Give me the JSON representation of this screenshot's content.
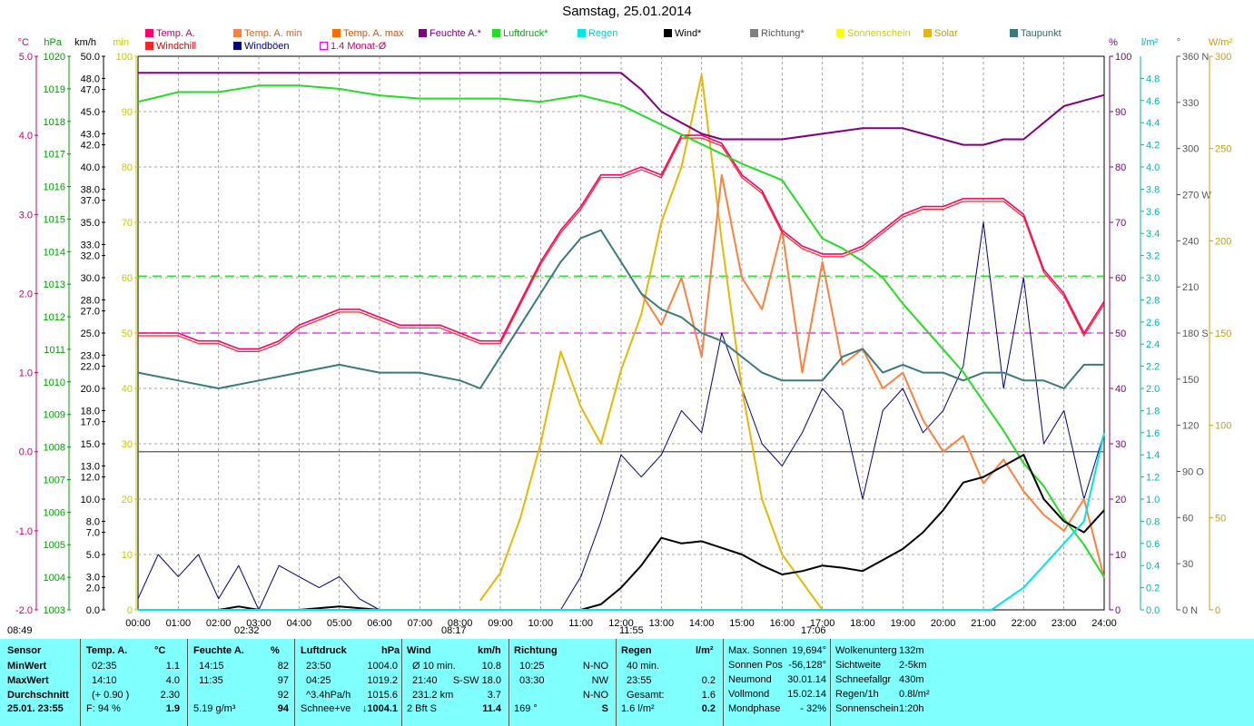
{
  "title": "Samstag, 25.01.2014",
  "colors": {
    "temp": "#ff0066",
    "temp_min": "#ff7f40",
    "temp_max": "#ff6a00",
    "windchill": "#ff2222",
    "humidity": "#800080",
    "pressure": "#22dd22",
    "rain": "#00e5e5",
    "wind": "#000000",
    "gust": "#000080",
    "direction": "#808080",
    "sunshine": "#ffff00",
    "solar": "#e6b800",
    "dewpoint": "#3a7a78",
    "avg": "#ff00ff",
    "pressure_ref": "#00cc00"
  },
  "legend": [
    {
      "label": "Temp. A.",
      "color": "#ff0066"
    },
    {
      "label": "Temp. A. min",
      "color": "#ff7f40"
    },
    {
      "label": "Temp. A. max",
      "color": "#ff6a00"
    },
    {
      "label": "Feuchte A.*",
      "color": "#800080"
    },
    {
      "label": "Luftdruck*",
      "color": "#22dd22"
    },
    {
      "label": "Regen",
      "color": "#00e5e5"
    },
    {
      "label": "Wind*",
      "color": "#000000"
    },
    {
      "label": "Richtung*",
      "color": "#808080"
    },
    {
      "label": "Sonnenschein",
      "color": "#ffff00"
    },
    {
      "label": "Solar",
      "color": "#e6b800"
    },
    {
      "label": "Taupunkt",
      "color": "#3a7a78"
    },
    {
      "label": "Windchill",
      "color": "#ff2222"
    },
    {
      "label": "Windböen",
      "color": "#000080"
    },
    {
      "label": "1.4 Monat-Ø",
      "color": "#ff00ff"
    }
  ],
  "chart_data": {
    "type": "line",
    "title": "Samstag, 25.01.2014",
    "x_tick_labels": [
      "00:00",
      "01:00",
      "02:00",
      "03:00",
      "04:00",
      "05:00",
      "06:00",
      "07:00",
      "08:00",
      "09:00",
      "10:00",
      "11:00",
      "12:00",
      "13:00",
      "14:00",
      "15:00",
      "16:00",
      "17:00",
      "18:00",
      "19:00",
      "20:00",
      "21:00",
      "22:00",
      "23:00",
      "24:00"
    ],
    "axes": {
      "temp": {
        "unit": "°C",
        "range": [
          -2.0,
          5.0
        ],
        "ticks": [
          "5.0",
          "4.0",
          "3.0",
          "2.0",
          "1.0",
          "0.0",
          "-1.0",
          "-2.0"
        ]
      },
      "pressure": {
        "unit": "hPa",
        "range": [
          1003,
          1020
        ],
        "ticks": [
          "1020",
          "1019",
          "1018",
          "1017",
          "1016",
          "1015",
          "1014",
          "1013",
          "1012",
          "1011",
          "1010",
          "1009",
          "1008",
          "1007",
          "1006",
          "1005",
          "1004",
          "1003"
        ]
      },
      "wind": {
        "unit": "km/h",
        "range": [
          0,
          50
        ],
        "ticks": [
          "50.0",
          "48.0",
          "47.0",
          "45.0",
          "43.0",
          "42.0",
          "40.0",
          "38.0",
          "37.0",
          "35.0",
          "33.0",
          "32.0",
          "30.0",
          "28.0",
          "27.0",
          "25.0",
          "23.0",
          "22.0",
          "20.0",
          "18.0",
          "17.0",
          "15.0",
          "13.0",
          "12.0",
          "10.0",
          "8.0",
          "7.0",
          "5.0",
          "3.0",
          "2.0",
          "0.0"
        ]
      },
      "percent": {
        "unit": "min",
        "range": [
          0,
          100
        ],
        "ticks": [
          "100",
          "90",
          "80",
          "70",
          "60",
          "50",
          "40",
          "30",
          "20",
          "10",
          "0"
        ]
      },
      "humidity": {
        "unit": "%",
        "range": [
          0,
          100
        ],
        "ticks": [
          "100",
          "90",
          "80",
          "70",
          "60",
          "50",
          "40",
          "30",
          "20",
          "10",
          "0"
        ]
      },
      "rain": {
        "unit": "l/m²",
        "range": [
          0,
          5
        ],
        "ticks": [
          "4.8",
          "4.6",
          "4.4",
          "4.2",
          "4.0",
          "3.8",
          "3.6",
          "3.4",
          "3.2",
          "3.0",
          "2.8",
          "2.6",
          "2.4",
          "2.2",
          "2.0",
          "1.8",
          "1.6",
          "1.4",
          "1.2",
          "1.0",
          "0.8",
          "0.6",
          "0.4",
          "0.2",
          "0.0"
        ]
      },
      "direction": {
        "unit": "°",
        "range": [
          0,
          360
        ],
        "ticks": [
          "360 N",
          "330",
          "300",
          "270 W",
          "240",
          "210",
          "180 S",
          "150",
          "120",
          "90 O",
          "60",
          "30",
          "0 N"
        ]
      },
      "solar": {
        "unit": "W/m²",
        "range": [
          0,
          300
        ],
        "ticks": [
          "300",
          "250",
          "200",
          "150",
          "100",
          "50",
          "0"
        ]
      }
    },
    "series": [
      {
        "name": "Temp. A.",
        "axis": "temp",
        "x": [
          0,
          1,
          1.5,
          2,
          2.5,
          3,
          3.5,
          4,
          4.5,
          5,
          5.5,
          6,
          6.5,
          7,
          7.5,
          8,
          8.5,
          9,
          9.5,
          10,
          10.5,
          11,
          11.5,
          12,
          12.5,
          13,
          13.5,
          14,
          14.5,
          15,
          15.5,
          16,
          16.5,
          17,
          17.5,
          18,
          18.5,
          19,
          19.5,
          20,
          20.5,
          21,
          21.5,
          22,
          22.5,
          23,
          23.5,
          24
        ],
        "y": [
          1.5,
          1.5,
          1.4,
          1.4,
          1.3,
          1.3,
          1.4,
          1.6,
          1.7,
          1.8,
          1.8,
          1.7,
          1.6,
          1.6,
          1.6,
          1.5,
          1.4,
          1.4,
          1.9,
          2.4,
          2.8,
          3.1,
          3.5,
          3.5,
          3.6,
          3.5,
          4.0,
          4.0,
          3.9,
          3.5,
          3.3,
          2.8,
          2.6,
          2.5,
          2.5,
          2.6,
          2.8,
          3.0,
          3.1,
          3.1,
          3.2,
          3.2,
          3.2,
          3.0,
          2.3,
          2.0,
          1.5,
          1.9
        ]
      },
      {
        "name": "Taupunkt",
        "axis": "temp",
        "x": [
          0,
          1,
          2,
          3,
          4,
          5,
          6,
          7,
          8,
          8.5,
          9,
          9.5,
          10,
          10.5,
          11,
          11.5,
          12,
          12.5,
          13,
          13.5,
          14,
          14.5,
          15,
          15.5,
          16,
          16.5,
          17,
          17.5,
          18,
          18.5,
          19,
          19.5,
          20,
          20.5,
          21,
          21.5,
          22,
          22.5,
          23,
          23.5,
          24
        ],
        "y": [
          1.0,
          0.9,
          0.8,
          0.9,
          1.0,
          1.1,
          1.0,
          1.0,
          0.9,
          0.8,
          1.2,
          1.6,
          2.0,
          2.4,
          2.7,
          2.8,
          2.4,
          2.0,
          1.8,
          1.7,
          1.5,
          1.4,
          1.2,
          1.0,
          0.9,
          0.9,
          0.9,
          1.2,
          1.3,
          1.0,
          1.1,
          1.0,
          1.0,
          0.9,
          1.0,
          1.0,
          0.9,
          0.9,
          0.8,
          1.1,
          1.1
        ]
      },
      {
        "name": "Feuchte A.*",
        "axis": "humidity",
        "x": [
          0,
          12,
          12.5,
          13,
          13.5,
          14,
          14.5,
          15,
          16,
          17,
          18,
          19,
          19.5,
          20,
          20.5,
          21,
          21.5,
          22,
          22.5,
          23,
          23.5,
          24
        ],
        "y": [
          97,
          97,
          94,
          90,
          88,
          86,
          85,
          85,
          85,
          86,
          87,
          87,
          86,
          85,
          84,
          84,
          85,
          85,
          88,
          91,
          92,
          93
        ]
      },
      {
        "name": "Luftdruck*",
        "axis": "pressure",
        "x": [
          0,
          1,
          2,
          3,
          4,
          5,
          6,
          7,
          8,
          9,
          10,
          11,
          12,
          13,
          14,
          15,
          16,
          16.5,
          17,
          17.5,
          18,
          18.5,
          19,
          19.5,
          20,
          20.5,
          21,
          21.5,
          22,
          22.5,
          23,
          23.5,
          24
        ],
        "y": [
          1018.6,
          1018.9,
          1018.9,
          1019.1,
          1019.1,
          1019.0,
          1018.8,
          1018.7,
          1018.7,
          1018.7,
          1018.6,
          1018.8,
          1018.5,
          1017.9,
          1017.3,
          1016.7,
          1016.2,
          1015.3,
          1014.4,
          1014.1,
          1013.7,
          1013.2,
          1012.4,
          1011.7,
          1011.0,
          1010.3,
          1009.4,
          1008.5,
          1007.5,
          1006.8,
          1005.8,
          1005.0,
          1004.0
        ]
      },
      {
        "name": "Wind*",
        "axis": "wind",
        "x": [
          0,
          2,
          2.5,
          3,
          4,
          5,
          6,
          7,
          8,
          9,
          10,
          10.5,
          11,
          11.5,
          12,
          12.5,
          13,
          13.5,
          14,
          14.5,
          15,
          15.5,
          16,
          16.5,
          17,
          17.5,
          18,
          18.5,
          19,
          19.5,
          20,
          20.5,
          21,
          21.5,
          22,
          22.5,
          23,
          23.5,
          24
        ],
        "y": [
          0,
          0,
          0.3,
          0,
          0,
          0.3,
          0,
          0,
          0,
          0,
          0,
          0,
          0,
          0.5,
          2.0,
          4.0,
          6.5,
          6.0,
          6.2,
          5.6,
          5.0,
          4.0,
          3.2,
          3.5,
          4.0,
          3.8,
          3.5,
          4.5,
          5.5,
          7.0,
          9.0,
          11.5,
          12.0,
          13.0,
          14.0,
          10.0,
          8.0,
          7.0,
          9.0
        ]
      },
      {
        "name": "Windböen",
        "axis": "wind",
        "x": [
          0,
          0.5,
          1,
          1.5,
          2,
          2.5,
          3,
          3.5,
          4,
          4.5,
          5,
          5.5,
          6,
          6.5,
          7,
          7.5,
          8,
          8.5,
          9,
          9.5,
          10,
          10.5,
          11,
          11.5,
          12,
          12.5,
          13,
          13.5,
          14,
          14.5,
          15,
          15.5,
          16,
          16.5,
          17,
          17.5,
          18,
          18.5,
          19,
          19.5,
          20,
          20.5,
          21,
          21.5,
          22,
          22.5,
          23,
          23.5,
          24
        ],
        "y": [
          1,
          5,
          3,
          5,
          1,
          4,
          0,
          4,
          3,
          2,
          3,
          1,
          0,
          0,
          0,
          0,
          0,
          0,
          0,
          0,
          0,
          0,
          3,
          8,
          14,
          12,
          14,
          18,
          16,
          25,
          20,
          15,
          13,
          16,
          20,
          18,
          10,
          18,
          20,
          16,
          18,
          22,
          35,
          20,
          30,
          15,
          18,
          10,
          16
        ]
      },
      {
        "name": "Solar",
        "axis": "solar",
        "x": [
          8.5,
          9,
          9.5,
          10,
          10.5,
          11,
          11.5,
          12,
          12.5,
          13,
          13.5,
          14,
          14.5,
          15,
          15.5,
          16,
          16.5,
          17
        ],
        "y": [
          5,
          20,
          50,
          90,
          140,
          110,
          90,
          130,
          160,
          210,
          240,
          290,
          200,
          120,
          60,
          30,
          15,
          0
        ]
      },
      {
        "name": "Temp. A. min",
        "axis": "temp",
        "x": [
          12.5,
          13,
          13.5,
          14,
          14.5,
          15,
          15.5,
          16,
          16.5,
          17,
          17.5,
          18,
          18.5,
          19,
          19.5,
          20,
          20.5,
          21,
          21.5,
          22,
          22.5,
          23,
          23.5,
          24
        ],
        "y": [
          2.0,
          1.6,
          2.2,
          1.2,
          3.5,
          2.2,
          1.8,
          2.8,
          1.0,
          2.4,
          1.1,
          1.3,
          0.8,
          1.0,
          0.4,
          0.0,
          0.2,
          -0.4,
          -0.1,
          -0.5,
          -0.8,
          -1.0,
          -0.6,
          -1.6
        ]
      },
      {
        "name": "Regen",
        "axis": "rain",
        "x": [
          0,
          21.2,
          22,
          23,
          23.5,
          24
        ],
        "y": [
          0,
          0,
          0.2,
          0.6,
          0.8,
          1.6
        ]
      }
    ],
    "reference_lines": [
      {
        "name": "1.4 Monat-Ø",
        "axis": "temp",
        "value": 1.5
      },
      {
        "name": "Luftdruck ref",
        "axis": "pressure",
        "value": 1013.25
      },
      {
        "name": "Null",
        "axis": "temp",
        "value": 0.0
      }
    ],
    "time_markers": [
      {
        "label": "08:49",
        "kind": "sunrise"
      },
      {
        "label": "02:32",
        "kind": "moonrise"
      },
      {
        "label": "08:17",
        "kind": "sun"
      },
      {
        "label": "11:55",
        "kind": "moon"
      },
      {
        "label": "17:06",
        "kind": "sunset"
      }
    ],
    "legend_position": "top",
    "grid": true
  },
  "summary": {
    "sensor": {
      "header": "Sensor",
      "rows": [
        "MinWert",
        "MaxWert",
        "Durchschnitt"
      ],
      "footer": "25.01. 23:55"
    },
    "temp": {
      "header": "Temp. A.",
      "unit": "°C",
      "rows": [
        [
          "02:35",
          "1.1"
        ],
        [
          "14:10",
          "4.0"
        ],
        [
          "(+ 0.90 )",
          "2.30"
        ]
      ],
      "footer_left": "F: 94 %",
      "footer_value": "1.9"
    },
    "humidity": {
      "header": "Feuchte A.",
      "unit": "%",
      "rows": [
        [
          "14:15",
          "82"
        ],
        [
          "11:35",
          "97"
        ],
        [
          "",
          "92"
        ]
      ],
      "footer_left": "5.19 g/m³",
      "footer_value": "94"
    },
    "pressure": {
      "header": "Luftdruck",
      "unit": "hPa",
      "rows": [
        [
          "23:50",
          "1004.0"
        ],
        [
          "04:25",
          "1019.2"
        ],
        [
          "^3.4hPa/h",
          "1015.6"
        ]
      ],
      "footer_left": "Schnee+ve",
      "footer_value": "↓1004.1"
    },
    "wind": {
      "header": "Wind",
      "unit": "km/h",
      "rows": [
        [
          "Ø 10 min.",
          "10.8"
        ],
        [
          "21:40",
          "S-SW 18.0"
        ],
        [
          "231.2 km",
          "3.7"
        ]
      ],
      "footer_left": "2 Bft S",
      "footer_value": "11.4"
    },
    "direction": {
      "header": "Richtung",
      "rows": [
        [
          "10:25",
          "N-NO"
        ],
        [
          "03:30",
          "NW"
        ],
        [
          "",
          "N-NO"
        ]
      ],
      "footer_left": "169 °",
      "footer_value": "S"
    },
    "rain": {
      "header": "Regen",
      "unit": "l/m²",
      "rows": [
        [
          "40 min.",
          ""
        ],
        [
          "23:55",
          "0.2"
        ],
        [
          "Gesamt:",
          "1.6"
        ]
      ],
      "footer_left": "1.6 l/m²",
      "footer_value": "0.2"
    },
    "sun": {
      "rows": [
        [
          "Max. Sonnen",
          "19,694°"
        ],
        [
          "Sonnen Pos",
          "-56,128°"
        ],
        [
          "Neumond",
          "30.01.14"
        ],
        [
          "Vollmond",
          "15.02.14"
        ],
        [
          "Mondphase",
          "- 32%"
        ]
      ]
    },
    "weather": {
      "rows": [
        [
          "Wolkenunterg",
          "132m"
        ],
        [
          "Sichtweite",
          "2-5km"
        ],
        [
          "Schneefallgr",
          "430m"
        ],
        [
          "Regen/1h",
          "0.8l/m²"
        ],
        [
          "Sonnenschein",
          "1:20h"
        ]
      ]
    }
  }
}
